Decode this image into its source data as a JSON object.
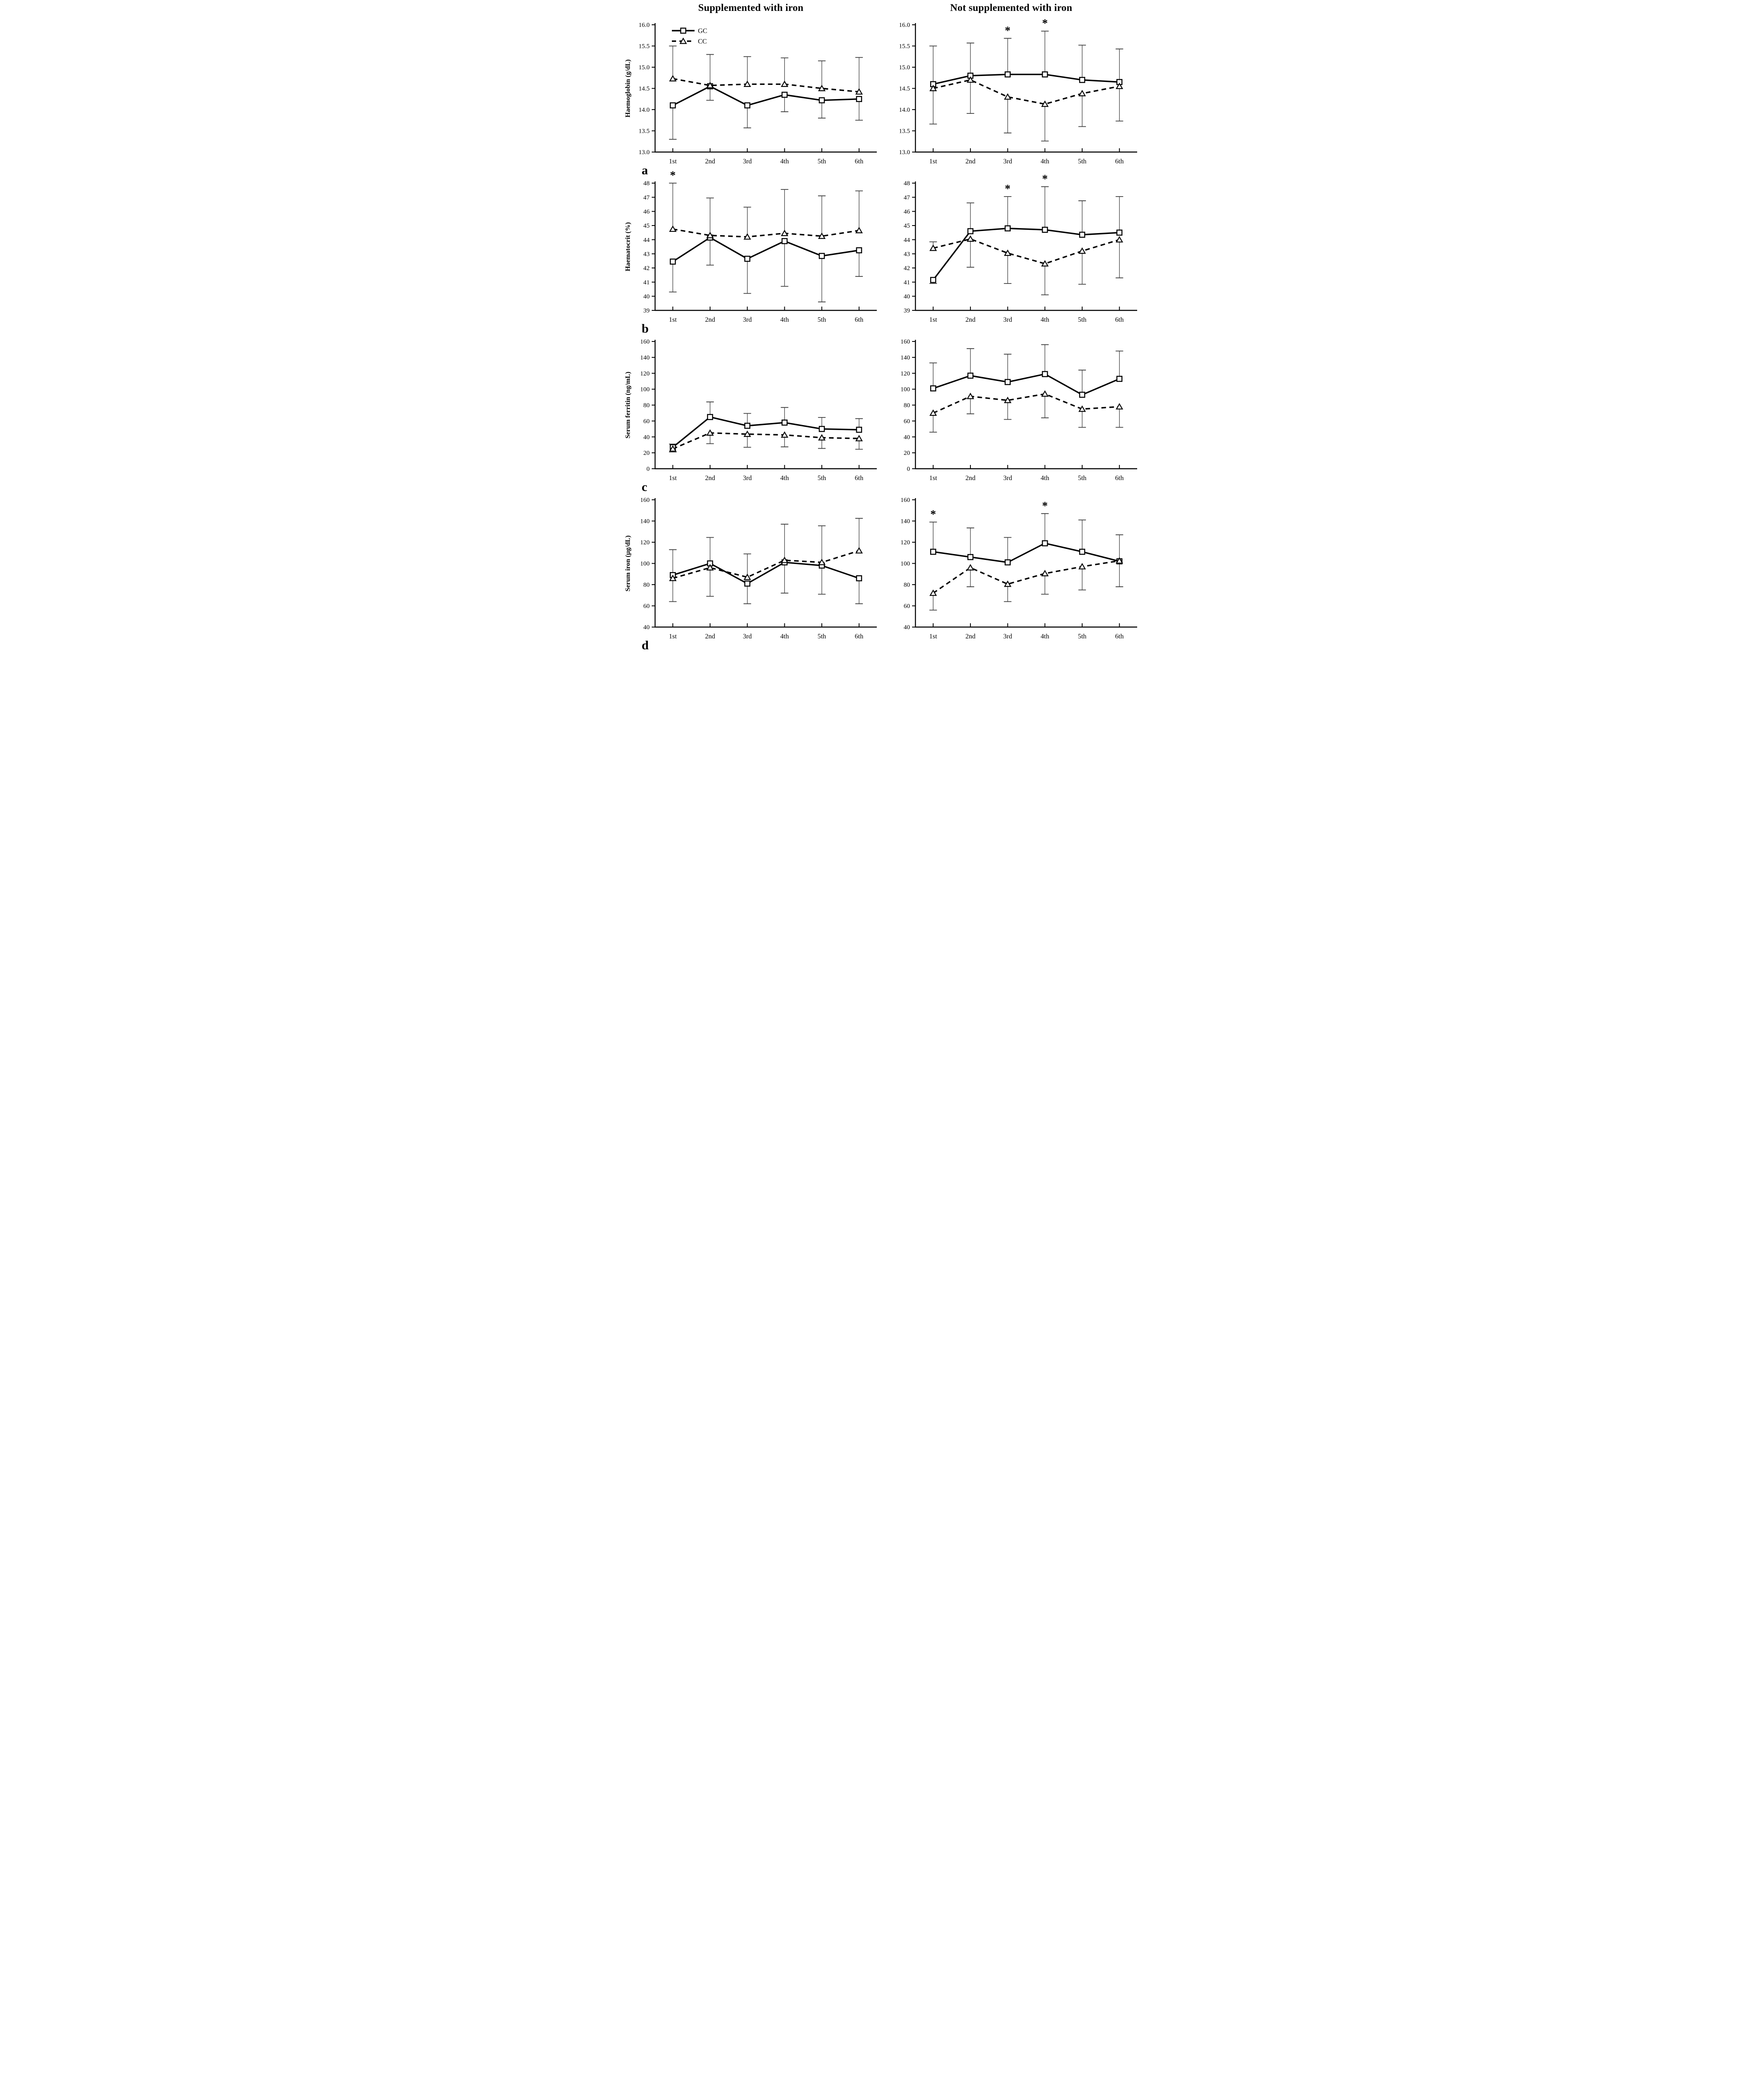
{
  "figure": {
    "column_titles": [
      "Supplemented with iron",
      "Not supplemented with iron"
    ],
    "x_categories": [
      "1st",
      "2nd",
      "3rd",
      "4th",
      "5th",
      "6th"
    ],
    "legend": {
      "gc_label": "GC",
      "cc_label": "CC"
    },
    "panel_letters": [
      "a",
      "b",
      "c",
      "d"
    ],
    "significance_symbol": "*",
    "colors": {
      "series": "#000000",
      "error_bar": "#3d3d3d",
      "background": "#ffffff"
    }
  },
  "chart_data": [
    {
      "id": "haemoglobin-supplemented",
      "type": "line",
      "panel": "a",
      "col": "left",
      "ylabel": "Haemoglobin (g/dL)",
      "ylim": [
        13.0,
        16.0
      ],
      "yticks": [
        "13.0",
        "13.5",
        "14.0",
        "14.5",
        "15.0",
        "15.5",
        "16.0"
      ],
      "categories": [
        "1st",
        "2nd",
        "3rd",
        "4th",
        "5th",
        "6th"
      ],
      "series": [
        {
          "name": "GC",
          "marker": "square",
          "line": "solid",
          "values": [
            14.1,
            14.55,
            14.1,
            14.35,
            14.22,
            14.25
          ]
        },
        {
          "name": "CC",
          "marker": "triangle",
          "line": "dashed",
          "values": [
            14.73,
            14.57,
            14.6,
            14.6,
            14.5,
            14.42
          ]
        }
      ],
      "err_top": [
        15.5,
        15.3,
        15.25,
        15.22,
        15.15,
        15.23
      ],
      "err_bottom": [
        13.3,
        14.22,
        13.57,
        13.95,
        13.8,
        13.75
      ],
      "stars": [],
      "panel_letter": "a",
      "show_legend": true
    },
    {
      "id": "haemoglobin-not-supplemented",
      "type": "line",
      "panel": "a",
      "col": "right",
      "ylim": [
        13.0,
        16.0
      ],
      "yticks": [
        "13.0",
        "13.5",
        "14.0",
        "14.5",
        "15.0",
        "15.5",
        "16.0"
      ],
      "categories": [
        "1st",
        "2nd",
        "3rd",
        "4th",
        "5th",
        "6th"
      ],
      "series": [
        {
          "name": "GC",
          "marker": "square",
          "line": "solid",
          "values": [
            14.6,
            14.8,
            14.83,
            14.83,
            14.7,
            14.65
          ]
        },
        {
          "name": "CC",
          "marker": "triangle",
          "line": "dashed",
          "values": [
            14.5,
            14.7,
            14.3,
            14.13,
            14.38,
            14.55
          ]
        }
      ],
      "err_top": [
        15.5,
        15.57,
        15.68,
        15.85,
        15.52,
        15.43
      ],
      "err_bottom": [
        13.66,
        13.91,
        13.45,
        13.26,
        13.6,
        13.73
      ],
      "stars": [
        2,
        3
      ],
      "show_legend": false
    },
    {
      "id": "haematocrit-supplemented",
      "type": "line",
      "panel": "b",
      "col": "left",
      "ylabel": "Haematocrit (%)",
      "ylim": [
        39,
        48
      ],
      "yticks": [
        "39",
        "40",
        "41",
        "42",
        "43",
        "44",
        "45",
        "46",
        "47",
        "48"
      ],
      "categories": [
        "1st",
        "2nd",
        "3rd",
        "4th",
        "5th",
        "6th"
      ],
      "series": [
        {
          "name": "GC",
          "marker": "square",
          "line": "solid",
          "values": [
            42.45,
            44.15,
            42.65,
            43.9,
            42.85,
            43.25
          ]
        },
        {
          "name": "CC",
          "marker": "triangle",
          "line": "dashed",
          "values": [
            44.75,
            44.3,
            44.2,
            44.45,
            44.25,
            44.65
          ]
        }
      ],
      "err_top": [
        48.0,
        46.95,
        46.3,
        47.55,
        47.1,
        47.45
      ],
      "err_bottom": [
        40.3,
        42.2,
        40.2,
        40.7,
        39.6,
        41.4
      ],
      "stars": [
        0
      ],
      "panel_letter": "b",
      "show_legend": false
    },
    {
      "id": "haematocrit-not-supplemented",
      "type": "line",
      "panel": "b",
      "col": "right",
      "ylim": [
        39,
        48
      ],
      "yticks": [
        "39",
        "40",
        "41",
        "42",
        "43",
        "44",
        "45",
        "46",
        "47",
        "48"
      ],
      "categories": [
        "1st",
        "2nd",
        "3rd",
        "4th",
        "5th",
        "6th"
      ],
      "series": [
        {
          "name": "GC",
          "marker": "square",
          "line": "solid",
          "values": [
            41.15,
            44.6,
            44.8,
            44.7,
            44.35,
            44.5
          ]
        },
        {
          "name": "CC",
          "marker": "triangle",
          "line": "dashed",
          "values": [
            43.4,
            44.05,
            43.05,
            42.3,
            43.2,
            44.0
          ]
        }
      ],
      "err_top": [
        43.85,
        46.6,
        47.05,
        47.75,
        46.75,
        47.05
      ],
      "err_bottom": [
        40.9,
        42.05,
        40.9,
        40.1,
        40.85,
        41.3
      ],
      "stars": [
        2,
        3
      ],
      "show_legend": false
    },
    {
      "id": "serum-ferritin-supplemented",
      "type": "line",
      "panel": "c",
      "col": "left",
      "ylabel": "Serum ferritin (ng/mL)",
      "ylim": [
        0,
        160
      ],
      "yticks": [
        "0",
        "20",
        "40",
        "60",
        "80",
        "100",
        "120",
        "140",
        "160"
      ],
      "categories": [
        "1st",
        "2nd",
        "3rd",
        "4th",
        "5th",
        "6th"
      ],
      "series": [
        {
          "name": "GC",
          "marker": "square",
          "line": "solid",
          "values": [
            27,
            65,
            54,
            58,
            50,
            49
          ]
        },
        {
          "name": "CC",
          "marker": "triangle",
          "line": "dashed",
          "values": [
            25,
            45,
            43.5,
            42.5,
            39,
            38
          ]
        }
      ],
      "err_top": [
        31,
        84,
        69.5,
        77,
        64.5,
        63
      ],
      "err_bottom": [
        21,
        31.5,
        27,
        27.5,
        25.5,
        24.5
      ],
      "stars": [],
      "panel_letter": "c",
      "show_legend": false
    },
    {
      "id": "serum-ferritin-not-supplemented",
      "type": "line",
      "panel": "c",
      "col": "right",
      "ylim": [
        0,
        160
      ],
      "yticks": [
        "0",
        "20",
        "40",
        "60",
        "80",
        "100",
        "120",
        "140",
        "160"
      ],
      "categories": [
        "1st",
        "2nd",
        "3rd",
        "4th",
        "5th",
        "6th"
      ],
      "series": [
        {
          "name": "GC",
          "marker": "square",
          "line": "solid",
          "values": [
            101,
            117,
            109,
            119,
            93,
            113
          ]
        },
        {
          "name": "CC",
          "marker": "triangle",
          "line": "dashed",
          "values": [
            70,
            91,
            86,
            94,
            75,
            78
          ]
        }
      ],
      "err_top": [
        133,
        151,
        144,
        156,
        124,
        148
      ],
      "err_bottom": [
        46,
        69,
        62,
        64,
        52,
        52
      ],
      "stars": [],
      "show_legend": false
    },
    {
      "id": "serum-iron-supplemented",
      "type": "line",
      "panel": "d",
      "col": "left",
      "ylabel": "Serum iron (µg/dL)",
      "ylim": [
        40,
        160
      ],
      "yticks": [
        "40",
        "60",
        "80",
        "100",
        "120",
        "140",
        "160"
      ],
      "categories": [
        "1st",
        "2nd",
        "3rd",
        "4th",
        "5th",
        "6th"
      ],
      "series": [
        {
          "name": "GC",
          "marker": "square",
          "line": "solid",
          "values": [
            89,
            100,
            81,
            101,
            98,
            86
          ]
        },
        {
          "name": "CC",
          "marker": "triangle",
          "line": "dashed",
          "values": [
            86,
            96,
            87,
            103,
            101,
            112
          ]
        }
      ],
      "err_top": [
        113,
        124.5,
        109,
        137,
        135.5,
        142.5
      ],
      "err_bottom": [
        64,
        69,
        62,
        72,
        71,
        62
      ],
      "stars": [],
      "panel_letter": "d",
      "show_legend": false
    },
    {
      "id": "serum-iron-not-supplemented",
      "type": "line",
      "panel": "d",
      "col": "right",
      "ylim": [
        40,
        160
      ],
      "yticks": [
        "40",
        "60",
        "80",
        "100",
        "120",
        "140",
        "160"
      ],
      "categories": [
        "1st",
        "2nd",
        "3rd",
        "4th",
        "5th",
        "6th"
      ],
      "series": [
        {
          "name": "GC",
          "marker": "square",
          "line": "solid",
          "values": [
            111,
            106,
            101,
            119,
            111,
            102
          ]
        },
        {
          "name": "CC",
          "marker": "triangle",
          "line": "dashed",
          "values": [
            72,
            96,
            80.5,
            90.5,
            97,
            102.5
          ]
        }
      ],
      "err_top": [
        139,
        133.5,
        124.5,
        147,
        141,
        127
      ],
      "err_bottom": [
        56,
        78,
        64,
        71,
        75,
        78
      ],
      "stars": [
        0,
        3
      ],
      "show_legend": false
    }
  ]
}
